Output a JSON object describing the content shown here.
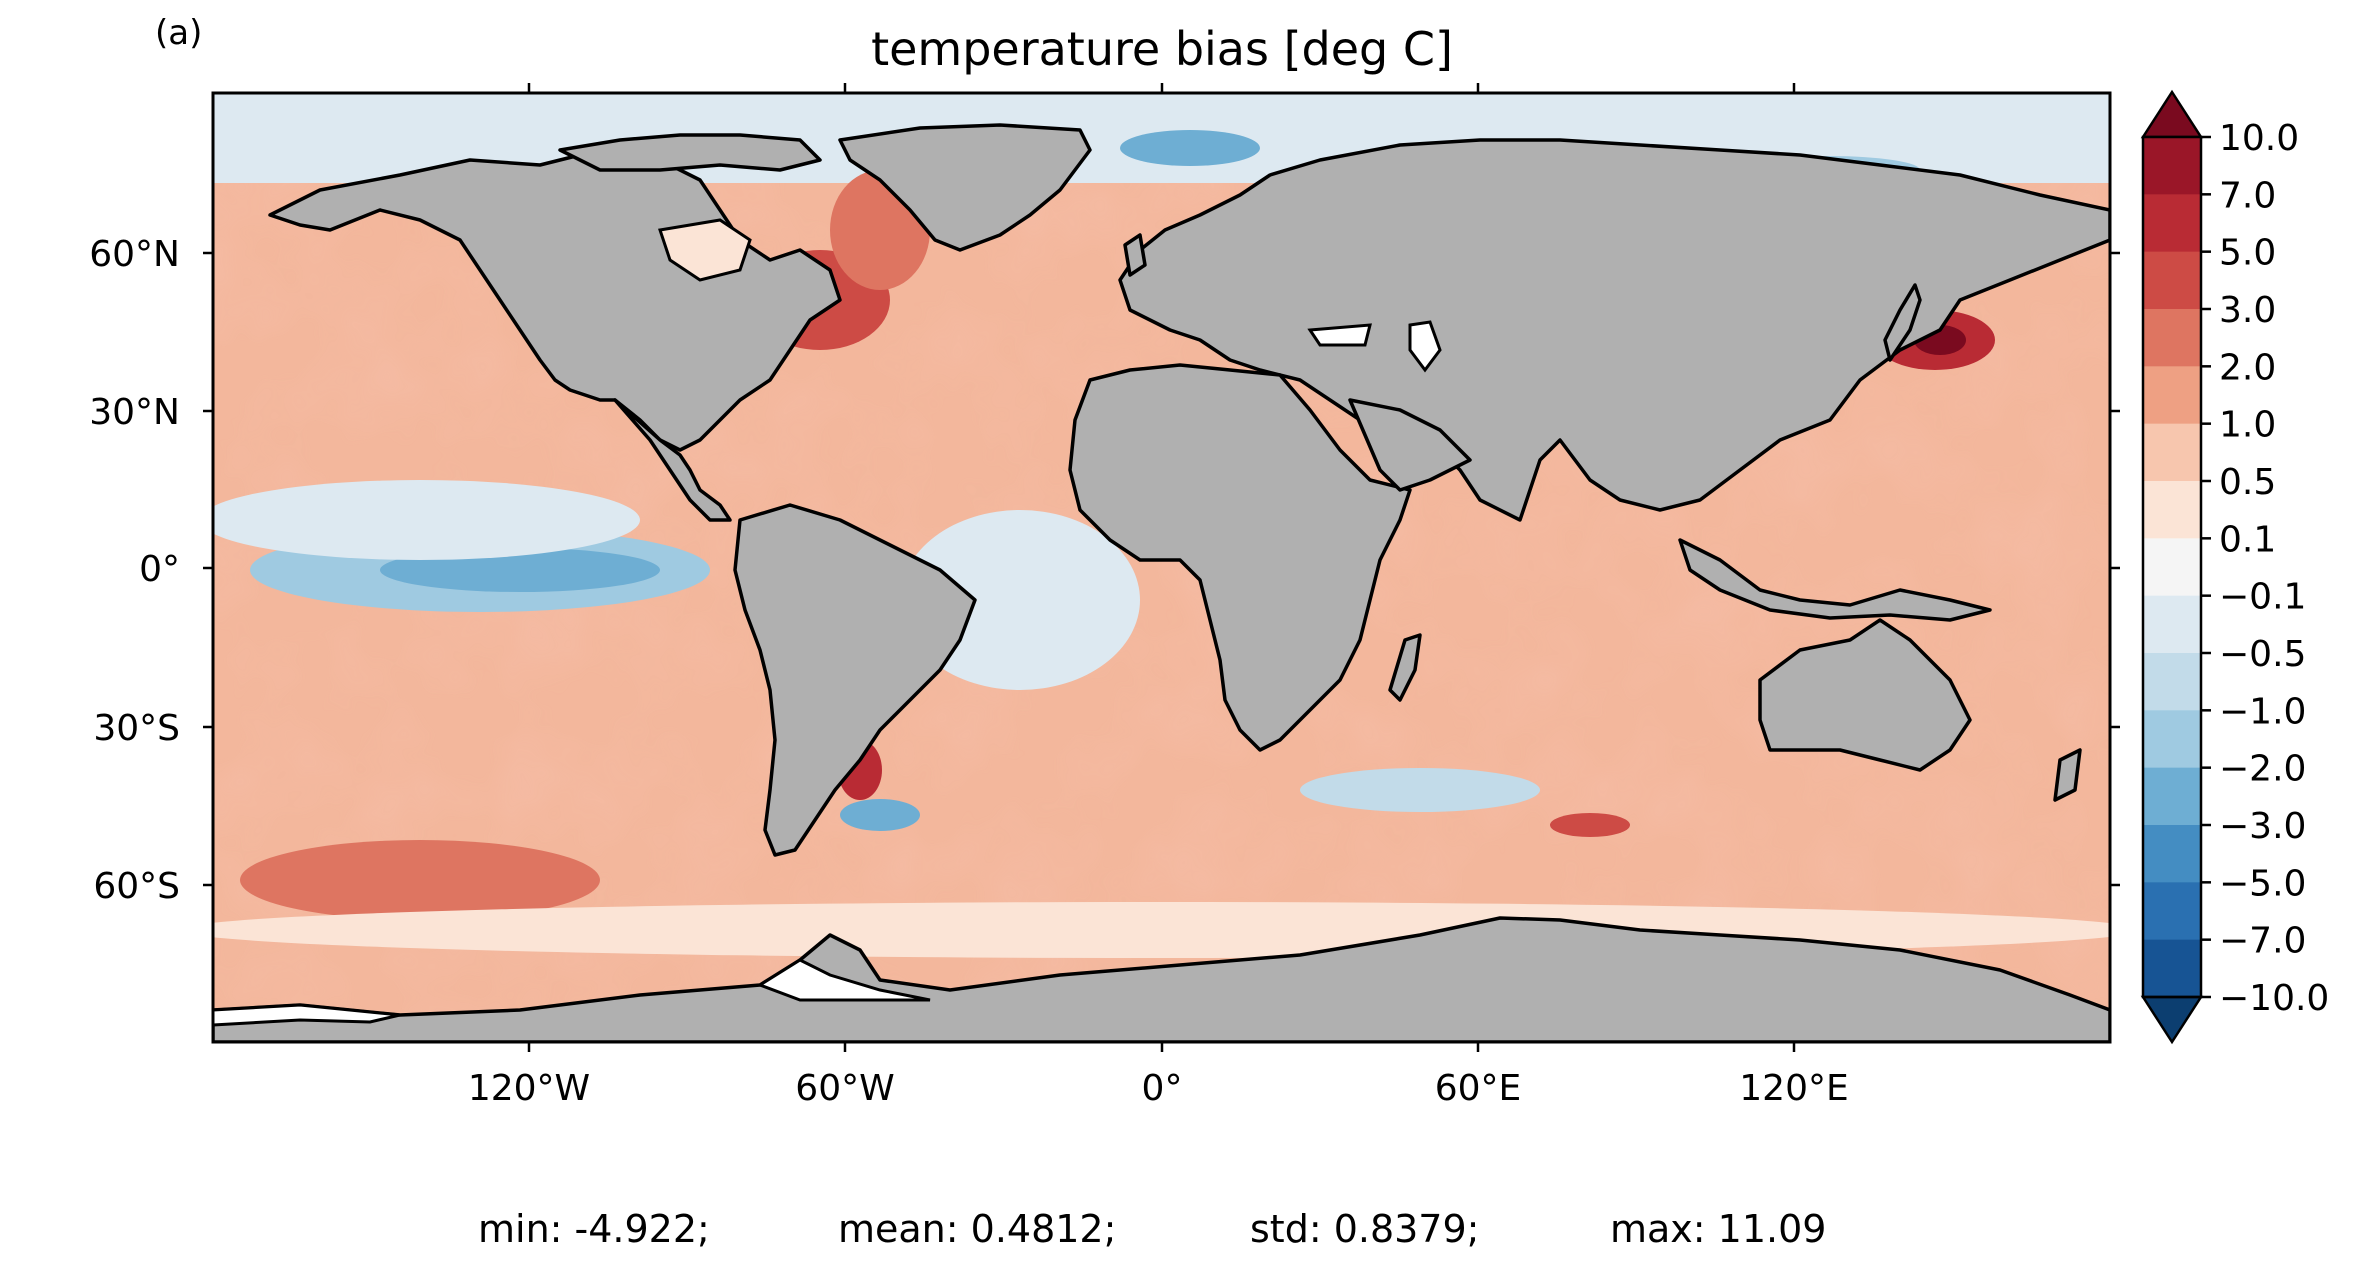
{
  "panel_label": "(a)",
  "title": "temperature bias [deg C]",
  "lat_labels": [
    "60°N",
    "30°N",
    "0°",
    "30°S",
    "60°S"
  ],
  "lon_labels": [
    "120°W",
    "60°W",
    "0°",
    "60°E",
    "120°E"
  ],
  "colorbar": {
    "levels": [
      -10.0,
      -7.0,
      -5.0,
      -3.0,
      -2.0,
      -1.0,
      -0.5,
      -0.1,
      0.1,
      0.5,
      1.0,
      2.0,
      3.0,
      5.0,
      7.0,
      10.0
    ],
    "tick_labels": [
      "10.0",
      "7.0",
      "5.0",
      "3.0",
      "2.0",
      "1.0",
      "0.5",
      "0.1",
      "−0.1",
      "−0.5",
      "−1.0",
      "−2.0",
      "−3.0",
      "−5.0",
      "−7.0",
      "−10.0"
    ],
    "colors_top_to_bottom": [
      "#7a0a1f",
      "#9a1628",
      "#b92b34",
      "#cd4b45",
      "#de7561",
      "#eea083",
      "#f7c6ae",
      "#fbe4d6",
      "#f5f5f5",
      "#dde9f1",
      "#c2dbe9",
      "#9fcae1",
      "#6eaed3",
      "#448dc2",
      "#2a70b1",
      "#175494",
      "#0c3e70"
    ],
    "extend": "both",
    "land_color": "#b0b0b0"
  },
  "stats": {
    "min": "min: -4.922;",
    "mean": "mean: 0.4812;",
    "std": "std: 0.8379;",
    "max": "max: 11.09"
  }
}
